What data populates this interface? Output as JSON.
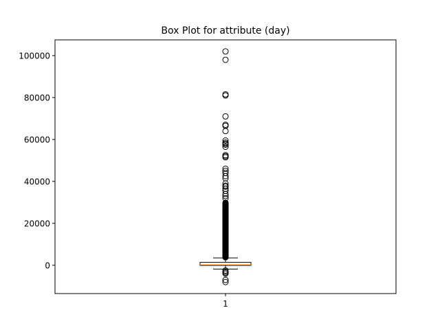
{
  "chart_data": {
    "type": "box",
    "title": "Box Plot for attribute (day)",
    "xlabel": "",
    "ylabel": "",
    "categories": [
      "1"
    ],
    "ylim": [
      -13500,
      107500
    ],
    "yticks": [
      0,
      20000,
      40000,
      60000,
      80000,
      100000
    ],
    "ytick_labels": [
      "0",
      "20000",
      "40000",
      "60000",
      "80000",
      "100000"
    ],
    "box": {
      "whisker_low": -1800,
      "q1": -100,
      "median": 200,
      "q3": 1400,
      "whisker_high": 3500
    },
    "outliers_high": [
      102000,
      98000,
      81500,
      81000,
      71000,
      67000,
      66500,
      64000,
      59500,
      58500,
      58000,
      57500,
      56500,
      52500,
      52000,
      51500,
      46000,
      45000,
      44000,
      42500,
      41500,
      39000,
      38000,
      37500,
      36500,
      35500,
      34000,
      33000,
      32000
    ],
    "outliers_dense_range": [
      3800,
      30000
    ],
    "outliers_low": [
      -2500,
      -3000,
      -3500,
      -4000,
      -7000,
      -8000
    ],
    "grid": false,
    "colors": {
      "median": "#ff7f0e",
      "box": "#000000",
      "outlier": "#000000"
    }
  }
}
